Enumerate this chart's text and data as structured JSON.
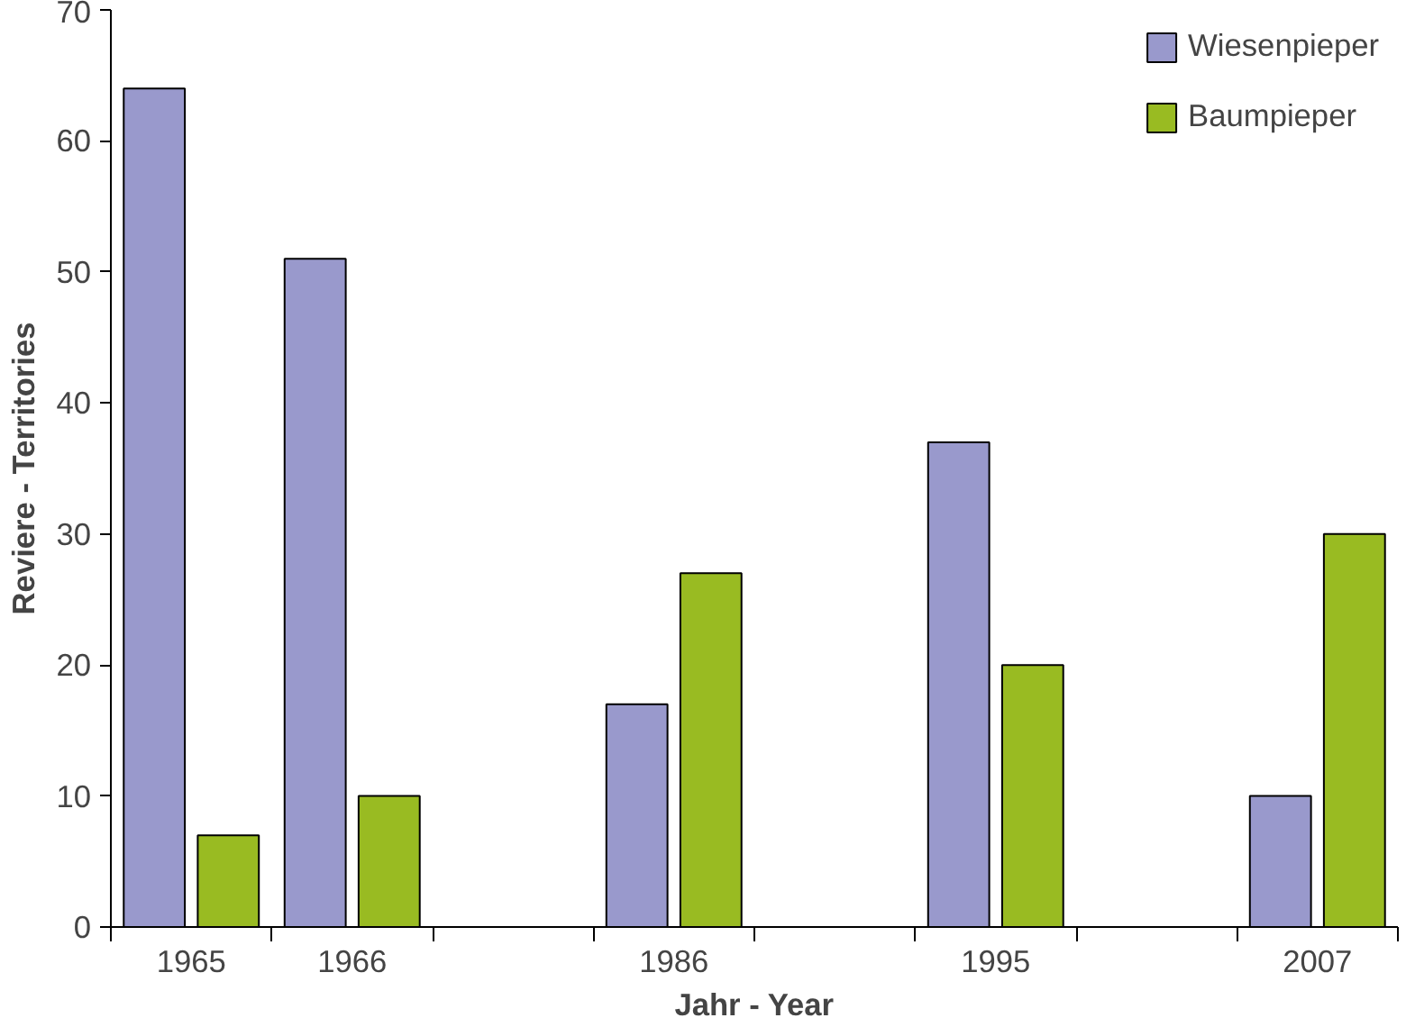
{
  "chart_data": {
    "type": "bar",
    "xlabel": "Jahr - Year",
    "ylabel": "Reviere - Territories",
    "categories": [
      "1965",
      "1966",
      null,
      "1986",
      null,
      "1995",
      null,
      "2007"
    ],
    "series": [
      {
        "name": "Wiesenpieper",
        "color": "#9999cc",
        "values": [
          64,
          51,
          null,
          17,
          null,
          37,
          null,
          10
        ]
      },
      {
        "name": "Baumpieper",
        "color": "#99bb22",
        "values": [
          7,
          10,
          null,
          27,
          null,
          20,
          null,
          30
        ]
      }
    ],
    "ylim": [
      0,
      70
    ],
    "yticks": [
      0,
      10,
      20,
      30,
      40,
      50,
      60,
      70
    ],
    "grid": false,
    "legend": "top right"
  }
}
